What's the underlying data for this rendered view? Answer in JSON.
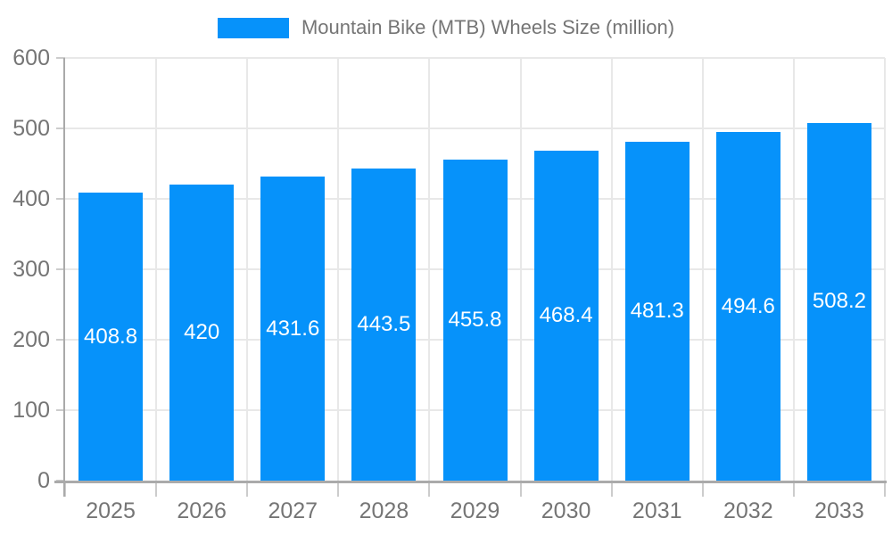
{
  "legend": {
    "label": "Mountain Bike (MTB) Wheels Size (million)"
  },
  "chart_data": {
    "type": "bar",
    "title": "Mountain Bike (MTB) Wheels Size (million)",
    "series_name": "Mountain Bike (MTB) Wheels Size (million)",
    "categories": [
      "2025",
      "2026",
      "2027",
      "2028",
      "2029",
      "2030",
      "2031",
      "2032",
      "2033"
    ],
    "values": [
      408.8,
      420,
      431.6,
      443.5,
      455.8,
      468.4,
      481.3,
      494.6,
      508.2
    ],
    "value_labels": [
      "408.8",
      "420",
      "431.6",
      "443.5",
      "455.8",
      "468.4",
      "481.3",
      "494.6",
      "508.2"
    ],
    "xlabel": "",
    "ylabel": "",
    "ylim": [
      0,
      600
    ],
    "yticks": [
      0,
      100,
      200,
      300,
      400,
      500,
      600
    ],
    "grid": true,
    "legend_position": "top",
    "colors": {
      "bar": "#0692fa",
      "bar_value_text": "#ffffff",
      "axis_text": "#757575",
      "axis_line": "#aaaaaa",
      "tick_line": "#cccccc",
      "gridline": "#e8e8e8",
      "background": "#ffffff"
    }
  }
}
